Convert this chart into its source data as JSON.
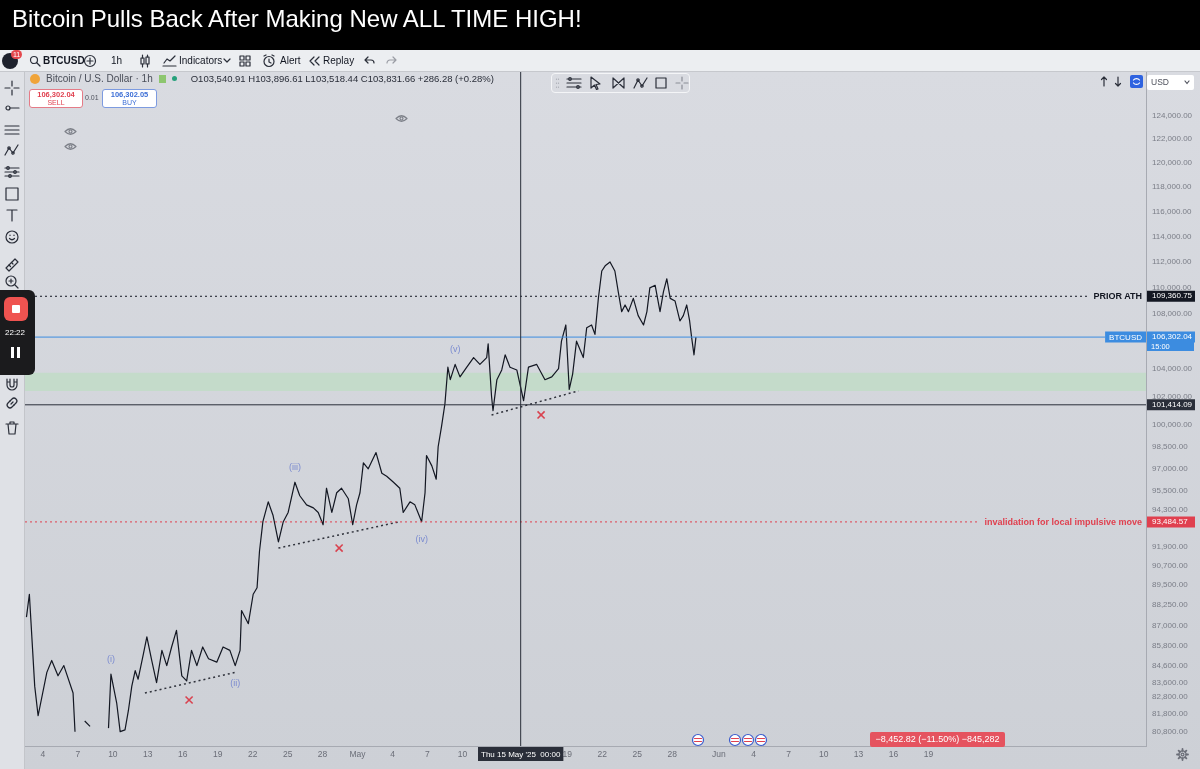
{
  "chart_data": {
    "type": "line",
    "title": "Bitcoin Pulls Back After Making New ALL TIME HIGH!",
    "log": "y",
    "xlim": [
      "2025-04-02T11:00",
      "2025-07-07T16:00"
    ],
    "ylim": [
      80000,
      127900
    ],
    "xticks": [
      {
        "value": "2025-04-04",
        "label": "4"
      },
      {
        "value": "2025-04-07",
        "label": "7"
      },
      {
        "value": "2025-04-10",
        "label": "10"
      },
      {
        "value": "2025-04-13",
        "label": "13"
      },
      {
        "value": "2025-04-16",
        "label": "16"
      },
      {
        "value": "2025-04-19",
        "label": "19"
      },
      {
        "value": "2025-04-22",
        "label": "22"
      },
      {
        "value": "2025-04-25",
        "label": "25"
      },
      {
        "value": "2025-04-28",
        "label": "28"
      },
      {
        "value": "2025-05-01",
        "label": "May"
      },
      {
        "value": "2025-05-04",
        "label": "4"
      },
      {
        "value": "2025-05-07",
        "label": "7"
      },
      {
        "value": "2025-05-10",
        "label": "10"
      },
      {
        "value": "2025-05-19",
        "label": "19"
      },
      {
        "value": "2025-05-22",
        "label": "22"
      },
      {
        "value": "2025-05-25",
        "label": "25"
      },
      {
        "value": "2025-05-28",
        "label": "28"
      },
      {
        "value": "2025-06-01",
        "label": "Jun"
      },
      {
        "value": "2025-06-04",
        "label": "4"
      },
      {
        "value": "2025-06-07",
        "label": "7"
      },
      {
        "value": "2025-06-10",
        "label": "10"
      },
      {
        "value": "2025-06-13",
        "label": "13"
      },
      {
        "value": "2025-06-16",
        "label": "16"
      },
      {
        "value": "2025-06-19",
        "label": "19"
      }
    ],
    "yticks": [
      {
        "value": 124000,
        "label": "124,000.00"
      },
      {
        "value": 122000,
        "label": "122,000.00"
      },
      {
        "value": 120000,
        "label": "120,000.00"
      },
      {
        "value": 118000,
        "label": "118,000.00"
      },
      {
        "value": 116000,
        "label": "116,000.00"
      },
      {
        "value": 114000,
        "label": "114,000.00"
      },
      {
        "value": 112000,
        "label": "112,000.00"
      },
      {
        "value": 110000,
        "label": "110,000.00"
      },
      {
        "value": 109360.75,
        "label": "109,360.75"
      },
      {
        "value": 108000,
        "label": "108,000.00"
      },
      {
        "value": 106302.04,
        "label": "106,302.04"
      },
      {
        "value": 104000,
        "label": "104,000.00"
      },
      {
        "value": 102000,
        "label": "102,000.00"
      },
      {
        "value": 101414.09,
        "label": "101,414.09"
      },
      {
        "value": 100000,
        "label": "100,000.00"
      },
      {
        "value": 98500,
        "label": "98,500.00"
      },
      {
        "value": 97000,
        "label": "97,000.00"
      },
      {
        "value": 95500,
        "label": "95,500.00"
      },
      {
        "value": 94300,
        "label": "94,300.00"
      },
      {
        "value": 93484.57,
        "label": "93,484.57"
      },
      {
        "value": 91900,
        "label": "91,900.00"
      },
      {
        "value": 90700,
        "label": "90,700.00"
      },
      {
        "value": 89500,
        "label": "89,500.00"
      },
      {
        "value": 88250,
        "label": "88,250.00"
      },
      {
        "value": 87000,
        "label": "87,000.00"
      },
      {
        "value": 85800,
        "label": "85,800.00"
      },
      {
        "value": 84600,
        "label": "84,600.00"
      },
      {
        "value": 83600,
        "label": "83,600.00"
      },
      {
        "value": 82800,
        "label": "82,800.00"
      },
      {
        "value": 81800,
        "label": "81,800.00"
      },
      {
        "value": 80800,
        "label": "80,800.00"
      }
    ],
    "series": [
      {
        "color": "#131722",
        "x": [
          "2025-04-02T14:00",
          "2025-04-02T20:00",
          "2025-04-03T07:00",
          "2025-04-03T14:00",
          "2025-04-04T08:00",
          "2025-04-04T18:00",
          "2025-04-05T07:00",
          "2025-04-05T19:00",
          "2025-04-06T14:00",
          "2025-04-06T18:00",
          "2025-04-07T06:00",
          "2025-04-07T14:00",
          "2025-04-08T01:00",
          "2025-04-08T12:00",
          "2025-04-09T15:00",
          "2025-04-09T20:00",
          "2025-04-10T08:00",
          "2025-04-10T15:00",
          "2025-04-11T01:00",
          "2025-04-11T08:00",
          "2025-04-11T15:00",
          "2025-04-11T22:00",
          "2025-04-12T04:00",
          "2025-04-12T15:00",
          "2025-04-12T22:00",
          "2025-04-13T08:00",
          "2025-04-13T18:00",
          "2025-04-14T05:00",
          "2025-04-14T15:00",
          "2025-04-15T01:00",
          "2025-04-15T11:00",
          "2025-04-15T22:00",
          "2025-04-16T08:00",
          "2025-04-16T18:00",
          "2025-04-17T05:00",
          "2025-04-17T17:00",
          "2025-04-18T05:00",
          "2025-04-18T22:00",
          "2025-04-19T11:00",
          "2025-04-20T01:00",
          "2025-04-20T12:00",
          "2025-04-20T22:00",
          "2025-04-21T01:00",
          "2025-04-21T15:00",
          "2025-04-22T01:00",
          "2025-04-22T09:00",
          "2025-04-22T14:00",
          "2025-04-22T21:00",
          "2025-04-23T08:00",
          "2025-04-23T18:00",
          "2025-04-24T05:00",
          "2025-04-24T15:00",
          "2025-04-25T01:00",
          "2025-04-25T15:00",
          "2025-04-26T01:00",
          "2025-04-26T15:00",
          "2025-04-27T05:00",
          "2025-04-27T15:00",
          "2025-04-28T01:00",
          "2025-04-28T08:00",
          "2025-04-28T19:00",
          "2025-04-29T05:00",
          "2025-04-29T15:00",
          "2025-04-30T05:00",
          "2025-04-30T14:00",
          "2025-04-30T22:00",
          "2025-05-01T05:00",
          "2025-05-01T12:00",
          "2025-05-01T22:00",
          "2025-05-02T14:00",
          "2025-05-03T02:00",
          "2025-05-03T12:00",
          "2025-05-04T02:00",
          "2025-05-04T15:00",
          "2025-05-04T22:00",
          "2025-05-05T12:00",
          "2025-05-05T22:00",
          "2025-05-06T12:00",
          "2025-05-06T19:00",
          "2025-05-06T22:00",
          "2025-05-07T09:00",
          "2025-05-07T18:00",
          "2025-05-07T22:00",
          "2025-05-08T05:00",
          "2025-05-08T12:00",
          "2025-05-08T18:00",
          "2025-05-08T23:00",
          "2025-05-09T09:00",
          "2025-05-09T19:00",
          "2025-05-10T09:00",
          "2025-05-10T23:00",
          "2025-05-11T12:00",
          "2025-05-12T02:00",
          "2025-05-12T05:00",
          "2025-05-12T12:00",
          "2025-05-12T15:00",
          "2025-05-12T23:00",
          "2025-05-13T09:00",
          "2025-05-13T16:00",
          "2025-05-14T02:00",
          "2025-05-14T16:00",
          "2025-05-15T06:00",
          "2025-05-15T16:00",
          "2025-05-16T09:00",
          "2025-05-17T02:00",
          "2025-05-17T16:00",
          "2025-05-18T06:00",
          "2025-05-18T12:00",
          "2025-05-18T21:00",
          "2025-05-19T04:00",
          "2025-05-19T11:00",
          "2025-05-19T19:00",
          "2025-05-20T09:00",
          "2025-05-20T16:00",
          "2025-05-21T02:00",
          "2025-05-21T09:00",
          "2025-05-21T16:00",
          "2025-05-21T23:00",
          "2025-05-22T06:00",
          "2025-05-22T16:00",
          "2025-05-23T02:00",
          "2025-05-23T09:00",
          "2025-05-23T16:00",
          "2025-05-23T23:00",
          "2025-05-24T06:00",
          "2025-05-24T16:00",
          "2025-05-25T02:00",
          "2025-05-25T13:00",
          "2025-05-25T20:00",
          "2025-05-26T02:00",
          "2025-05-26T13:00",
          "2025-05-26T23:00",
          "2025-05-27T06:00",
          "2025-05-27T13:00",
          "2025-05-27T20:00",
          "2025-05-28T06:00",
          "2025-05-28T16:00",
          "2025-05-28T23:00",
          "2025-05-29T06:00",
          "2025-05-29T12:00",
          "2025-05-29T16:00",
          "2025-05-29T21:00",
          "2025-05-30T01:00"
        ],
        "values": [
          87500,
          88900,
          83400,
          81700,
          84200,
          84900,
          84000,
          84600,
          83000,
          80800,
          null,
          81400,
          81100,
          null,
          81000,
          84100,
          82400,
          80800,
          80900,
          82000,
          83400,
          84300,
          83800,
          85300,
          86300,
          84900,
          83600,
          85500,
          84600,
          85700,
          86700,
          84000,
          83700,
          85500,
          84600,
          85700,
          85000,
          84800,
          85700,
          85500,
          84600,
          85500,
          87900,
          87100,
          88900,
          89300,
          91600,
          93500,
          94800,
          93900,
          92200,
          93500,
          94100,
          96100,
          95200,
          94600,
          94400,
          94100,
          93300,
          95700,
          94100,
          95400,
          95700,
          95000,
          93300,
          94600,
          95400,
          97400,
          97000,
          98100,
          96700,
          96500,
          96100,
          95700,
          94100,
          94800,
          94600,
          93500,
          95400,
          97900,
          97200,
          96300,
          98500,
          99900,
          101500,
          104100,
          103200,
          104300,
          103400,
          104100,
          104800,
          104300,
          104800,
          105800,
          102000,
          101000,
          103200,
          103900,
          105000,
          104100,
          103900,
          101700,
          104100,
          104300,
          103200,
          103400,
          104000,
          106000,
          107200,
          102500,
          103600,
          106000,
          104800,
          107000,
          107200,
          106500,
          109200,
          111300,
          111700,
          112000,
          111300,
          109700,
          108200,
          108700,
          108200,
          109200,
          107900,
          107200,
          108200,
          110000,
          110200,
          108200,
          109700,
          110700,
          109200,
          109000,
          107500,
          107900,
          108700,
          107500,
          106300,
          105000,
          106300
        ]
      },
      {
        "type": "line",
        "color": "#2f323b",
        "line_style": "dotted",
        "x": [
          "2025-04-12T18:00",
          "2025-04-20T12:00"
        ],
        "values": [
          83000,
          84200
        ]
      },
      {
        "type": "line",
        "color": "#2f323b",
        "line_style": "dotted",
        "x": [
          "2025-04-24T05:00",
          "2025-05-04T15:00"
        ],
        "values": [
          91800,
          93500
        ]
      },
      {
        "type": "line",
        "color": "#2f323b",
        "line_style": "dotted",
        "x": [
          "2025-05-12T12:00",
          "2025-05-19T23:00"
        ],
        "values": [
          100700,
          102400
        ]
      },
      {
        "type": "scatter",
        "color": "#d9424f",
        "marker": "cross",
        "x": [
          "2025-04-16T13:00",
          "2025-04-29T10:00",
          "2025-05-16T18:00"
        ],
        "values": [
          82600,
          91800,
          100700
        ]
      }
    ],
    "ref_lines": [
      {
        "axis": "y",
        "value": 109360.75,
        "label": "PRIOR ATH",
        "color": "#131722",
        "line_style": "dotted"
      },
      {
        "axis": "y",
        "value": 106302.04,
        "label": "BTCUSD",
        "color": "#3c8ce0",
        "line_style": "solid"
      },
      {
        "axis": "y",
        "value": 101414.09,
        "color": "#2a2e39",
        "line_style": "solid"
      },
      {
        "axis": "y",
        "value": 93484.57,
        "label": "invalidation for local impulsive move",
        "color": "#e0404f",
        "line_style": "dotted"
      },
      {
        "axis": "x",
        "value": "2025-05-15T00:00",
        "label": "Thu 15 May '25  00:00",
        "color": "#2a2e39",
        "line_style": "solid"
      }
    ],
    "bands": [
      {
        "axis": "y",
        "from": 102400,
        "to": 103700,
        "color": "#c4dbca"
      }
    ],
    "annotations": [
      "11",
      "BTCUSD",
      "1h",
      "Indicators",
      "Alert",
      "Replay",
      "Bitcoin / U.S. Dollar · 1h",
      "O103,540.91 H103,896.61 L103,518.44 C103,831.66 +286.28 (+0.28%)",
      "106,302.04",
      "SELL",
      "0.01",
      "106,302.05",
      "BUY",
      "22:22",
      "USD",
      "15:00",
      "−8,452.82 (−11.50%) −845,282",
      {
        "text": "(i)",
        "x": "2025-04-09T20:00",
        "y": 84100
      },
      {
        "text": "(ii)",
        "x": "2025-04-20T12:00",
        "y": 84600
      },
      {
        "text": "(iii)",
        "x": "2025-04-25T15:00",
        "y": 96100
      },
      {
        "text": "(iv)",
        "x": "2025-05-06T12:00",
        "y": 93500
      },
      {
        "text": "(v)",
        "x": "2025-05-09T09:00",
        "y": 104300
      }
    ]
  }
}
